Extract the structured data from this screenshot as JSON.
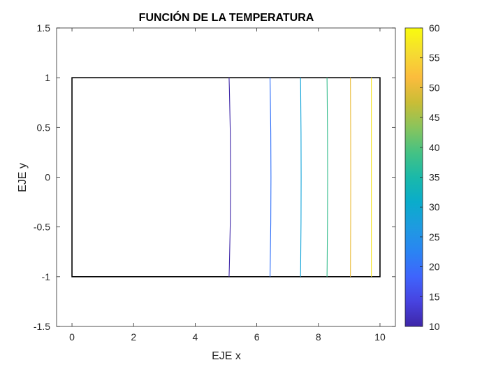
{
  "chart_data": {
    "type": "contour",
    "title": "FUNCIÓN DE LA TEMPERATURA",
    "xlabel": "EJE x",
    "ylabel": "EJE y",
    "xlim": [
      -0.5,
      10.5
    ],
    "ylim": [
      -1.5,
      1.5
    ],
    "x_ticks": [
      "0",
      "2",
      "4",
      "6",
      "8",
      "10"
    ],
    "y_ticks": [
      "-1.5",
      "-1",
      "-0.5",
      "0",
      "0.5",
      "1",
      "1.5"
    ],
    "grid": false,
    "domain_rectangle": {
      "x": [
        0,
        10
      ],
      "y": [
        -1,
        1
      ],
      "color": "#000000"
    },
    "contour_levels": [
      {
        "level": 10,
        "x_at_edges": 5.1,
        "x_at_center": 5.15,
        "color": "#3e26a8"
      },
      {
        "level": 20,
        "x_at_edges": 6.43,
        "x_at_center": 6.46,
        "color": "#2f6ff9"
      },
      {
        "level": 30,
        "x_at_edges": 7.42,
        "x_at_center": 7.44,
        "color": "#13a4d9"
      },
      {
        "level": 40,
        "x_at_edges": 8.28,
        "x_at_center": 8.3,
        "color": "#34bc8c"
      },
      {
        "level": 50,
        "x_at_edges": 9.04,
        "x_at_center": 9.05,
        "color": "#eabc3a"
      },
      {
        "level": 60,
        "x_at_edges": 9.72,
        "x_at_center": 9.72,
        "color": "#f5e525"
      }
    ],
    "colorbar": {
      "limits": [
        10,
        60
      ],
      "ticks": [
        "10",
        "15",
        "20",
        "25",
        "30",
        "35",
        "40",
        "45",
        "50",
        "55",
        "60"
      ],
      "colormap": "parula",
      "colors": [
        "#3e26a8",
        "#4743e0",
        "#3f64fc",
        "#2a84f3",
        "#1e9be0",
        "#0aaccb",
        "#1ab9a9",
        "#45c283",
        "#89c45c",
        "#c9bd36",
        "#fbbc3d",
        "#f5dc31",
        "#f9fb0e"
      ]
    }
  }
}
